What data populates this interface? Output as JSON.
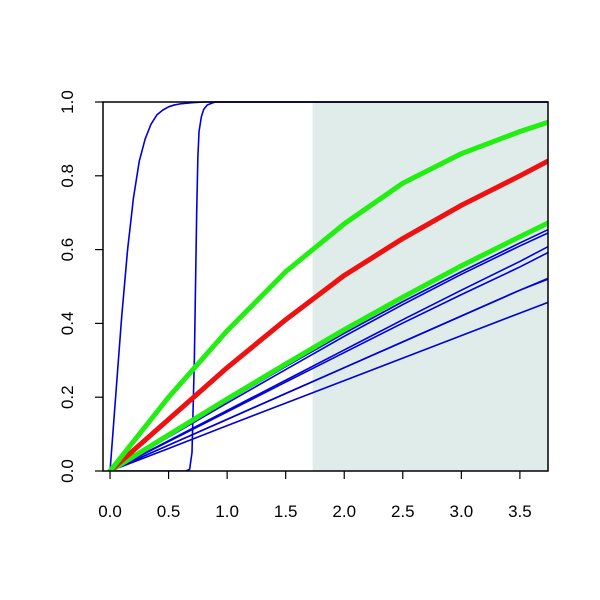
{
  "chart_data": {
    "type": "line",
    "title": "",
    "xlabel": "",
    "ylabel": "",
    "xlim": [
      -0.06,
      3.74
    ],
    "ylim": [
      0.0,
      1.0
    ],
    "x_ticks": [
      0.0,
      0.5,
      1.0,
      1.5,
      2.0,
      2.5,
      3.0,
      3.5
    ],
    "x_tick_labels": [
      "0.0",
      "0.5",
      "1.0",
      "1.5",
      "2.0",
      "2.5",
      "3.0",
      "3.5"
    ],
    "y_ticks": [
      0.0,
      0.2,
      0.4,
      0.6,
      0.8,
      1.0
    ],
    "y_tick_labels": [
      "0.0",
      "0.2",
      "0.4",
      "0.6",
      "0.8",
      "1.0"
    ],
    "grid": false,
    "legend": "none",
    "shaded_region": {
      "x_start": 1.73,
      "x_end": 3.74,
      "color": "#e0ecea"
    },
    "series": [
      {
        "color": "#0000dd",
        "width": 1.6,
        "x": [
          0,
          0.05,
          0.1,
          0.15,
          0.2,
          0.25,
          0.3,
          0.35,
          0.4,
          0.45,
          0.5,
          0.55,
          0.6,
          0.7,
          0.8,
          0.9,
          1.0,
          1.5,
          2.0,
          3.74
        ],
        "y": [
          0.0,
          0.21,
          0.42,
          0.6,
          0.74,
          0.84,
          0.9,
          0.94,
          0.965,
          0.978,
          0.987,
          0.992,
          0.995,
          0.998,
          1.0,
          1.0,
          1.0,
          1.0,
          1.0,
          1.0
        ]
      },
      {
        "color": "#0000dd",
        "width": 1.6,
        "x": [
          0,
          0.5,
          0.65,
          0.68,
          0.7,
          0.72,
          0.73,
          0.74,
          0.75,
          0.76,
          0.78,
          0.8,
          0.83,
          0.87,
          0.9,
          1.0,
          1.5,
          3.74
        ],
        "y": [
          0.0,
          0.0,
          0.0,
          0.005,
          0.05,
          0.3,
          0.5,
          0.7,
          0.85,
          0.92,
          0.96,
          0.98,
          0.992,
          0.997,
          1.0,
          1.0,
          1.0,
          1.0
        ]
      },
      {
        "color": "#0000dd",
        "width": 1.6,
        "x": [
          0,
          0.5,
          1.0,
          1.5,
          2.0,
          2.5,
          3.0,
          3.5,
          3.74
        ],
        "y": [
          0.0,
          0.061,
          0.123,
          0.184,
          0.245,
          0.306,
          0.367,
          0.428,
          0.457
        ]
      },
      {
        "color": "#0000dd",
        "width": 1.6,
        "x": [
          0,
          0.5,
          1.0,
          1.5,
          2.0,
          2.5,
          3.0,
          3.5,
          3.74
        ],
        "y": [
          0.0,
          0.07,
          0.14,
          0.21,
          0.28,
          0.35,
          0.42,
          0.49,
          0.52
        ]
      },
      {
        "color": "#0000dd",
        "width": 1.6,
        "x": [
          0,
          0.5,
          1.0,
          1.5,
          2.0,
          2.5,
          3.0,
          3.5,
          3.74
        ],
        "y": [
          0.0,
          0.07,
          0.14,
          0.21,
          0.28,
          0.35,
          0.42,
          0.49,
          0.522
        ]
      },
      {
        "color": "#0000dd",
        "width": 1.6,
        "x": [
          0,
          0.5,
          1.0,
          1.5,
          2.0,
          2.5,
          3.0,
          3.5,
          3.74
        ],
        "y": [
          0.0,
          0.08,
          0.16,
          0.241,
          0.321,
          0.401,
          0.478,
          0.553,
          0.592
        ]
      },
      {
        "color": "#0000dd",
        "width": 1.6,
        "x": [
          0,
          0.5,
          1.0,
          1.5,
          2.0,
          2.5,
          3.0,
          3.5,
          3.74
        ],
        "y": [
          0.0,
          0.082,
          0.164,
          0.246,
          0.328,
          0.41,
          0.49,
          0.568,
          0.608
        ]
      },
      {
        "color": "#0000dd",
        "width": 1.6,
        "x": [
          0,
          0.5,
          1.0,
          1.5,
          2.0,
          2.5,
          3.0,
          3.5,
          3.74
        ],
        "y": [
          0.0,
          0.092,
          0.184,
          0.275,
          0.365,
          0.451,
          0.533,
          0.61,
          0.645
        ]
      },
      {
        "color": "#0000dd",
        "width": 1.6,
        "x": [
          0,
          0.5,
          1.0,
          1.5,
          2.0,
          2.5,
          3.0,
          3.5,
          3.74
        ],
        "y": [
          0.0,
          0.095,
          0.19,
          0.283,
          0.373,
          0.459,
          0.54,
          0.618,
          0.654
        ]
      },
      {
        "color": "#22ee11",
        "width": 5,
        "x": [
          0,
          0.5,
          1.0,
          1.5,
          2.0,
          2.5,
          3.0,
          3.5,
          3.74
        ],
        "y": [
          0.0,
          0.098,
          0.195,
          0.29,
          0.383,
          0.471,
          0.556,
          0.635,
          0.672
        ]
      },
      {
        "color": "#ee1111",
        "width": 5,
        "x": [
          0,
          0.5,
          1.0,
          1.5,
          2.0,
          2.5,
          3.0,
          3.5,
          3.74
        ],
        "y": [
          0.0,
          0.14,
          0.28,
          0.41,
          0.53,
          0.63,
          0.72,
          0.8,
          0.84
        ]
      },
      {
        "color": "#22ee11",
        "width": 5,
        "x": [
          0,
          0.5,
          1.0,
          1.5,
          2.0,
          2.5,
          3.0,
          3.5,
          3.74
        ],
        "y": [
          0.0,
          0.2,
          0.38,
          0.54,
          0.67,
          0.78,
          0.86,
          0.92,
          0.945
        ]
      }
    ]
  }
}
